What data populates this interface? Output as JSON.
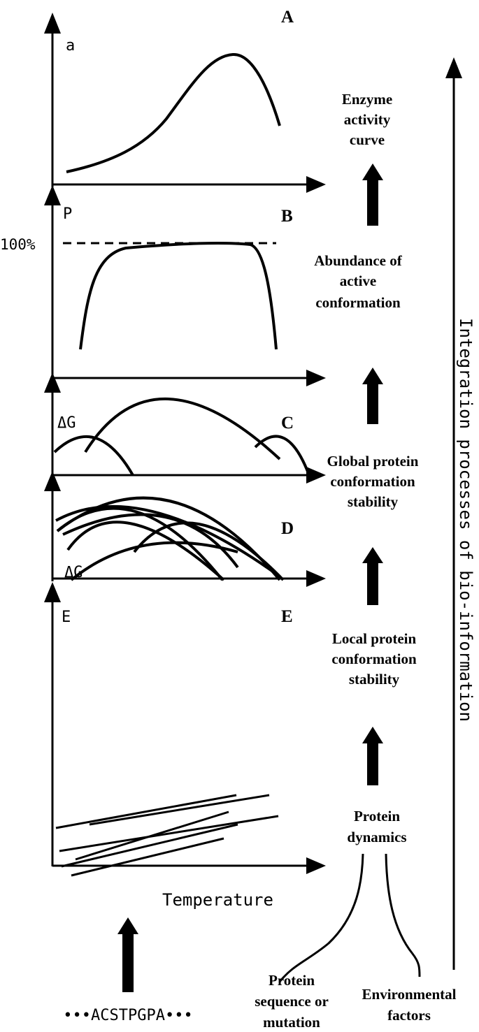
{
  "panels": {
    "A": {
      "letter": "A",
      "axis_label": "a",
      "caption": [
        "Enzyme",
        "activity",
        "curve"
      ]
    },
    "B": {
      "letter": "B",
      "axis_label": "P",
      "reference": "100%",
      "caption": [
        "Abundance of",
        "active",
        "conformation"
      ]
    },
    "C": {
      "letter": "C",
      "axis_label": "ΔG",
      "caption": [
        "Global protein",
        "conformation",
        "stability"
      ]
    },
    "D": {
      "letter": "D",
      "axis_label": "ΔG",
      "caption": [
        "Local protein",
        "conformation",
        "stability"
      ]
    },
    "E": {
      "letter": "E",
      "axis_label": "E",
      "caption": [
        "Protein",
        "dynamics"
      ]
    }
  },
  "x_axis_label": "Temperature",
  "sequence": "•••ACSTPGPA•••",
  "inputs": {
    "sequence_label": [
      "Protein",
      "sequence or",
      "mutation"
    ],
    "environment_label": [
      "Environmental",
      "factors"
    ]
  },
  "side_label": "Integration processes of bio-information"
}
